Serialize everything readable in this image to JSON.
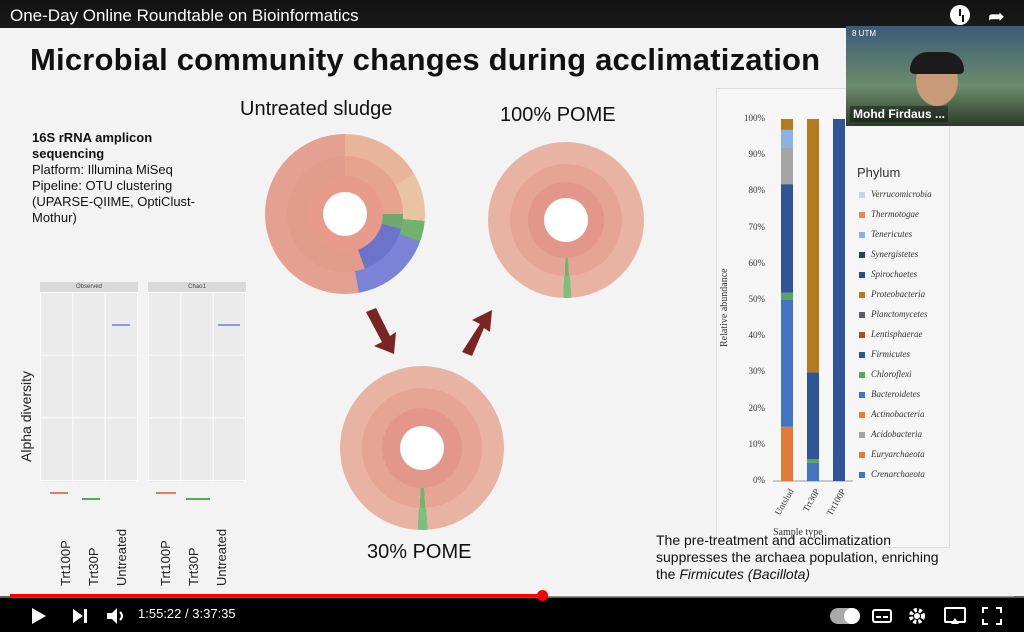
{
  "video": {
    "title": "One-Day Online Roundtable on Bioinformatics",
    "time_current": "1:55:22",
    "time_separator": "/",
    "time_total": "3:37:35",
    "progress_fraction": 0.53
  },
  "slide": {
    "title": "Microbial community changes during acclimatization",
    "method_title": "16S rRNA amplicon sequencing",
    "method_lines": [
      "Platform: Illumina MiSeq",
      "Pipeline: OTU clustering",
      "(UPARSE-QIIME, OptiClust-",
      "Mothur)"
    ],
    "sunburst_labels": {
      "untreated": "Untreated sludge",
      "pome100": "100% POME",
      "pome30": "30% POME"
    },
    "alpha": {
      "ylabel": "Alpha diversity",
      "facet1": "Observed",
      "facet2": "Chao1",
      "xticks": [
        "Trt100P",
        "Trt30P",
        "Untreated"
      ]
    },
    "caption_lines": [
      "The pre-treatment and acclimatization",
      "suppresses the archaea population, enriching",
      "the"
    ],
    "caption_italic": "Firmicutes (Bacillota)"
  },
  "chart_data": {
    "type": "bar",
    "categories": [
      "Untslud",
      "Trt30P",
      "Trt100P"
    ],
    "xlabel": "Sample type",
    "ylabel": "Relative abundance",
    "ylim": [
      0,
      100
    ],
    "yticks": [
      "0%",
      "10%",
      "20%",
      "30%",
      "40%",
      "50%",
      "60%",
      "70%",
      "80%",
      "90%",
      "100%"
    ],
    "legend_title": "Phylum",
    "legend": [
      "Verrucomicrobia",
      "Thermotogae",
      "Tenericutes",
      "Synergistetes",
      "Spirochaetes",
      "Proteobacteria",
      "Planctomycetes",
      "Lentisphaerae",
      "Firmicutes",
      "Chloroflexi",
      "Bacteroidetes",
      "Actinobacteria",
      "Acidobacteria",
      "Euryarchaeota",
      "Crenarchaeota"
    ],
    "colors": {
      "Verrucomicrobia": "#c9d3e6",
      "Thermotogae": "#e58b53",
      "Tenericutes": "#8fb1e0",
      "Synergistetes": "#2d3f66",
      "Spirochaetes": "#2c4a8c",
      "Proteobacteria": "#b47b1e",
      "Planctomycetes": "#5a5f66",
      "Lentisphaerae": "#a0522d",
      "Firmicutes": "#2f5597",
      "Chloroflexi": "#5aa55a",
      "Bacteroidetes": "#4472c4",
      "Actinobacteria": "#ed7d31",
      "Acidobacteria": "#a5a5a5",
      "Euryarchaeota": "#e07b39",
      "Crenarchaeota": "#4472c4"
    },
    "series": [
      {
        "name": "Euryarchaeota",
        "values": [
          15,
          0,
          0
        ]
      },
      {
        "name": "Bacteroidetes",
        "values": [
          35,
          5,
          0
        ]
      },
      {
        "name": "Chloroflexi",
        "values": [
          2,
          1,
          0
        ]
      },
      {
        "name": "Firmicutes",
        "values": [
          30,
          24,
          100
        ]
      },
      {
        "name": "Acidobacteria",
        "values": [
          10,
          0,
          0
        ]
      },
      {
        "name": "Tenericutes",
        "values": [
          5,
          0,
          0
        ]
      },
      {
        "name": "Proteobacteria",
        "values": [
          3,
          70,
          0
        ]
      }
    ]
  },
  "webcam": {
    "name": "Mohd Firdaus ...",
    "brand": "8 UTM"
  }
}
